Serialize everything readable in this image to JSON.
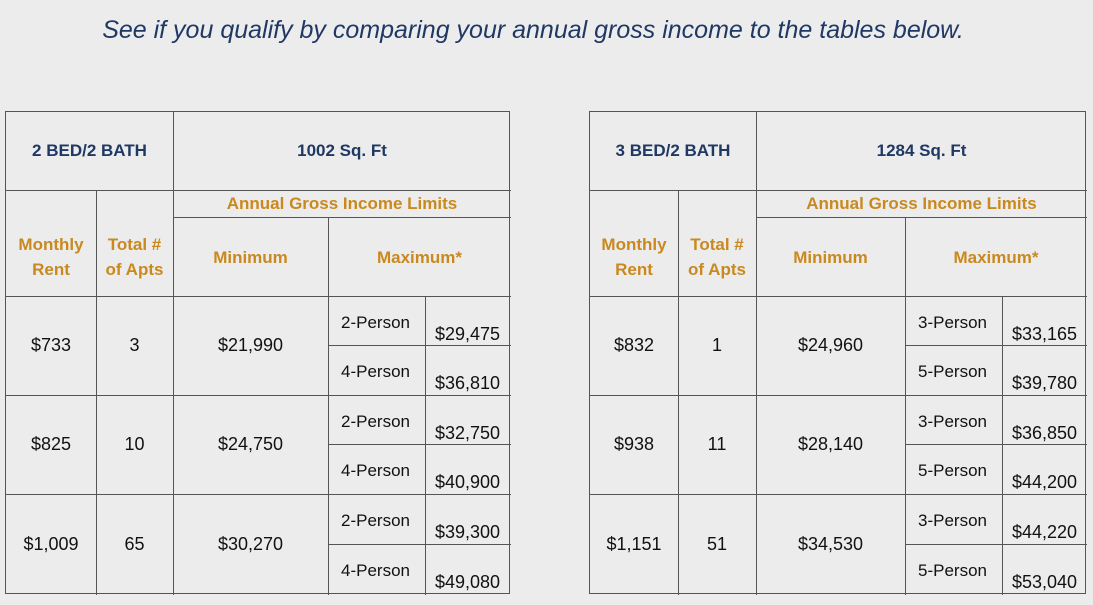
{
  "headline": "See if you qualify by comparing your annual gross income to the tables below.",
  "tables": [
    {
      "unit": "2 BED/2 BATH",
      "sqft": "1002 Sq. Ft",
      "limits_label": "Annual Gross Income Limits",
      "col_rent": "Monthly\nRent",
      "col_apts": "Total #\nof Apts",
      "col_min": "Minimum",
      "col_max": "Maximum*",
      "rows": [
        {
          "rent": "$733",
          "apts": "3",
          "min": "$21,990",
          "p1": "2-Person",
          "m1": "$29,475",
          "p2": "4-Person",
          "m2": "$36,810"
        },
        {
          "rent": "$825",
          "apts": "10",
          "min": "$24,750",
          "p1": "2-Person",
          "m1": "$32,750",
          "p2": "4-Person",
          "m2": "$40,900"
        },
        {
          "rent": "$1,009",
          "apts": "65",
          "min": "$30,270",
          "p1": "2-Person",
          "m1": "$39,300",
          "p2": "4-Person",
          "m2": "$49,080"
        }
      ]
    },
    {
      "unit": "3 BED/2 BATH",
      "sqft": "1284 Sq. Ft",
      "limits_label": "Annual Gross Income Limits",
      "col_rent": "Monthly\nRent",
      "col_apts": "Total #\nof Apts",
      "col_min": "Minimum",
      "col_max": "Maximum*",
      "rows": [
        {
          "rent": "$832",
          "apts": "1",
          "min": "$24,960",
          "p1": "3-Person",
          "m1": "$33,165",
          "p2": "5-Person",
          "m2": "$39,780"
        },
        {
          "rent": "$938",
          "apts": "11",
          "min": "$28,140",
          "p1": "3-Person",
          "m1": "$36,850",
          "p2": "5-Person",
          "m2": "$44,200"
        },
        {
          "rent": "$1,151",
          "apts": "51",
          "min": "$34,530",
          "p1": "3-Person",
          "m1": "$44,220",
          "p2": "5-Person",
          "m2": "$53,040"
        }
      ]
    }
  ]
}
